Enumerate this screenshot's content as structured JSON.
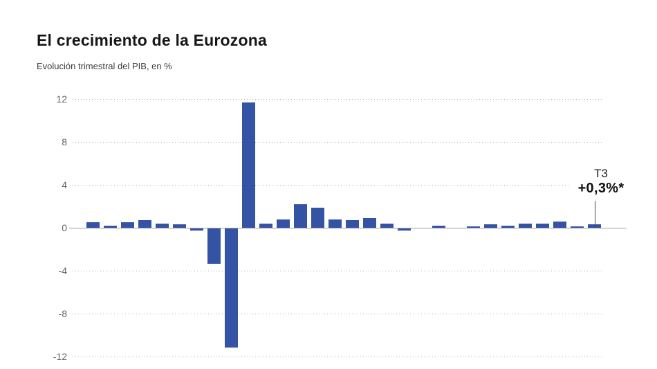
{
  "header": {
    "title": "El crecimiento de la Eurozona",
    "subtitle": "Evolución trimestral del PIB, en %"
  },
  "chart_data": {
    "type": "bar",
    "title": "El crecimiento de la Eurozona",
    "subtitle": "Evolución trimestral del PIB, en %",
    "xlabel": "",
    "ylabel": "Evolución trimestral del PIB, en %",
    "x_tick_labels": [],
    "values": [
      0.5,
      0.2,
      0.5,
      0.7,
      0.4,
      0.3,
      -0.2,
      -3.3,
      -11.1,
      11.7,
      0.4,
      0.8,
      2.2,
      1.9,
      0.8,
      0.7,
      0.9,
      0.4,
      -0.2,
      0.0,
      0.2,
      0.0,
      0.1,
      0.3,
      0.2,
      0.4,
      0.4,
      0.6,
      0.1,
      0.3
    ],
    "yticks": [
      12,
      8,
      4,
      0,
      -4,
      -8,
      -12
    ],
    "ytick_labels": [
      "12",
      "8",
      "4",
      "0",
      "-4",
      "-8",
      "-12"
    ],
    "ylim": [
      -12.5,
      12.5
    ],
    "grid": "horizontal-dotted",
    "legend": "none",
    "bar_color": "#3453a5",
    "annotation": {
      "quarter": "T3",
      "value_label": "+0,3%*",
      "target_bar_index": 29
    }
  },
  "colors": {
    "background": "#ffffff",
    "bar": "#3453a5",
    "gridline": "#ababab",
    "zero_line": "#9f9f9f",
    "tick_text": "#646464",
    "title_text": "#161616",
    "subtitle_text": "#3c3c3c",
    "annotation_text": "#111111"
  }
}
